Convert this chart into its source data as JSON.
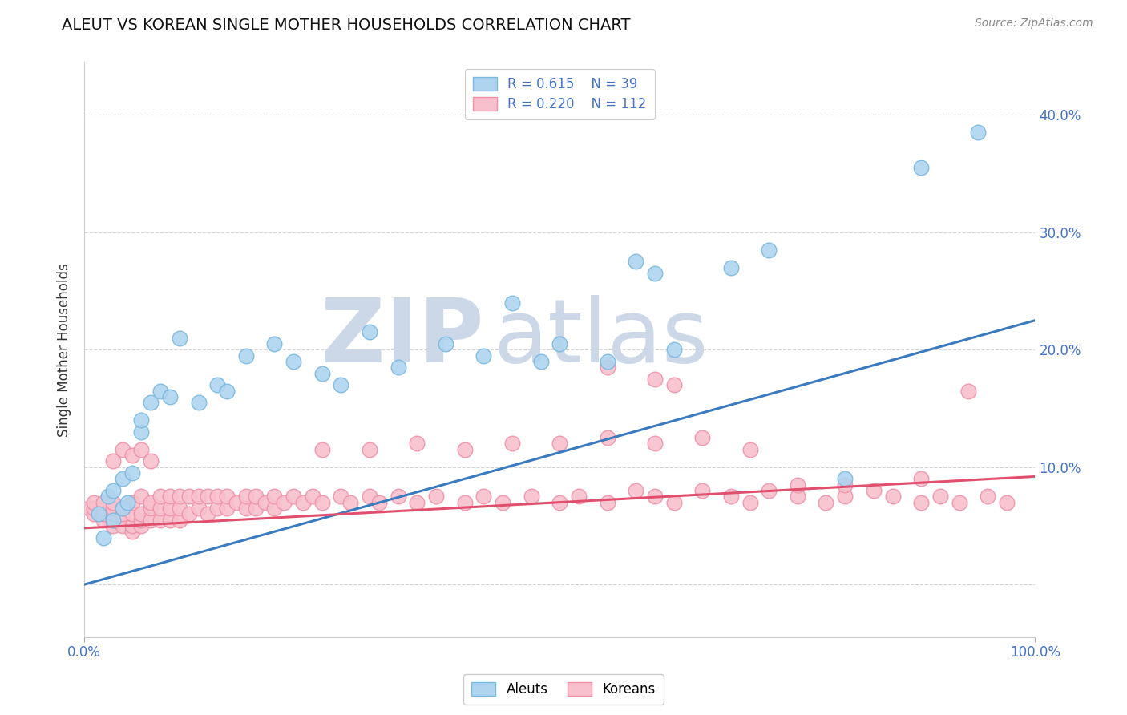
{
  "title": "ALEUT VS KOREAN SINGLE MOTHER HOUSEHOLDS CORRELATION CHART",
  "source": "Source: ZipAtlas.com",
  "ylabel": "Single Mother Households",
  "xlim": [
    0.0,
    1.0
  ],
  "ylim": [
    -0.045,
    0.445
  ],
  "aleut_R": 0.615,
  "aleut_N": 39,
  "korean_R": 0.22,
  "korean_N": 112,
  "aleut_color_edge": "#7ab8e0",
  "aleut_color_fill": "#aed4ef",
  "korean_color_edge": "#f090a8",
  "korean_color_fill": "#f8c0cc",
  "trend_aleut_color": "#3a7abf",
  "trend_korean_color": "#e0506e",
  "watermark_color": "#ccd8e8",
  "background_color": "#ffffff",
  "grid_color": "#c8c8c8",
  "tick_label_color": "#4472c4",
  "trend_aleut_x0": 0.0,
  "trend_aleut_y0": 0.0,
  "trend_aleut_x1": 1.0,
  "trend_aleut_y1": 0.225,
  "trend_korean_x0": 0.0,
  "trend_korean_y0": 0.048,
  "trend_korean_x1": 1.0,
  "trend_korean_y1": 0.092,
  "aleut_x": [
    0.015,
    0.02,
    0.025,
    0.03,
    0.03,
    0.04,
    0.04,
    0.045,
    0.05,
    0.06,
    0.06,
    0.07,
    0.08,
    0.09,
    0.1,
    0.12,
    0.14,
    0.15,
    0.17,
    0.2,
    0.22,
    0.25,
    0.27,
    0.3,
    0.33,
    0.38,
    0.42,
    0.45,
    0.48,
    0.5,
    0.55,
    0.58,
    0.6,
    0.62,
    0.68,
    0.72,
    0.8,
    0.88,
    0.94
  ],
  "aleut_y": [
    0.06,
    0.04,
    0.075,
    0.055,
    0.08,
    0.065,
    0.09,
    0.07,
    0.095,
    0.13,
    0.14,
    0.155,
    0.165,
    0.16,
    0.21,
    0.155,
    0.17,
    0.165,
    0.195,
    0.205,
    0.19,
    0.18,
    0.17,
    0.215,
    0.185,
    0.205,
    0.195,
    0.24,
    0.19,
    0.205,
    0.19,
    0.275,
    0.265,
    0.2,
    0.27,
    0.285,
    0.09,
    0.355,
    0.385
  ],
  "korean_x": [
    0.005,
    0.01,
    0.01,
    0.01,
    0.02,
    0.02,
    0.02,
    0.02,
    0.03,
    0.03,
    0.03,
    0.03,
    0.03,
    0.04,
    0.04,
    0.04,
    0.05,
    0.05,
    0.05,
    0.05,
    0.06,
    0.06,
    0.06,
    0.06,
    0.07,
    0.07,
    0.07,
    0.08,
    0.08,
    0.08,
    0.09,
    0.09,
    0.09,
    0.1,
    0.1,
    0.1,
    0.11,
    0.11,
    0.12,
    0.12,
    0.13,
    0.13,
    0.14,
    0.14,
    0.15,
    0.15,
    0.16,
    0.17,
    0.17,
    0.18,
    0.18,
    0.19,
    0.2,
    0.2,
    0.21,
    0.22,
    0.23,
    0.24,
    0.25,
    0.27,
    0.28,
    0.3,
    0.31,
    0.33,
    0.35,
    0.37,
    0.4,
    0.42,
    0.44,
    0.47,
    0.5,
    0.52,
    0.55,
    0.58,
    0.6,
    0.62,
    0.65,
    0.68,
    0.7,
    0.72,
    0.75,
    0.78,
    0.8,
    0.83,
    0.85,
    0.88,
    0.9,
    0.92,
    0.95,
    0.97,
    0.03,
    0.04,
    0.05,
    0.06,
    0.07,
    0.25,
    0.3,
    0.35,
    0.4,
    0.45,
    0.5,
    0.55,
    0.6,
    0.65,
    0.7,
    0.55,
    0.6,
    0.62,
    0.75,
    0.8,
    0.88,
    0.93
  ],
  "korean_y": [
    0.065,
    0.06,
    0.065,
    0.07,
    0.055,
    0.06,
    0.065,
    0.07,
    0.05,
    0.055,
    0.06,
    0.065,
    0.07,
    0.05,
    0.06,
    0.065,
    0.045,
    0.05,
    0.06,
    0.07,
    0.05,
    0.055,
    0.06,
    0.075,
    0.055,
    0.065,
    0.07,
    0.055,
    0.065,
    0.075,
    0.055,
    0.065,
    0.075,
    0.055,
    0.065,
    0.075,
    0.06,
    0.075,
    0.065,
    0.075,
    0.06,
    0.075,
    0.065,
    0.075,
    0.065,
    0.075,
    0.07,
    0.065,
    0.075,
    0.065,
    0.075,
    0.07,
    0.065,
    0.075,
    0.07,
    0.075,
    0.07,
    0.075,
    0.07,
    0.075,
    0.07,
    0.075,
    0.07,
    0.075,
    0.07,
    0.075,
    0.07,
    0.075,
    0.07,
    0.075,
    0.07,
    0.075,
    0.07,
    0.08,
    0.075,
    0.07,
    0.08,
    0.075,
    0.07,
    0.08,
    0.075,
    0.07,
    0.075,
    0.08,
    0.075,
    0.07,
    0.075,
    0.07,
    0.075,
    0.07,
    0.105,
    0.115,
    0.11,
    0.115,
    0.105,
    0.115,
    0.115,
    0.12,
    0.115,
    0.12,
    0.12,
    0.125,
    0.12,
    0.125,
    0.115,
    0.185,
    0.175,
    0.17,
    0.085,
    0.085,
    0.09,
    0.165
  ],
  "ytick_positions": [
    0.0,
    0.1,
    0.2,
    0.3,
    0.4
  ],
  "ytick_labels_right": [
    "",
    "10.0%",
    "20.0%",
    "30.0%",
    "40.0%"
  ]
}
